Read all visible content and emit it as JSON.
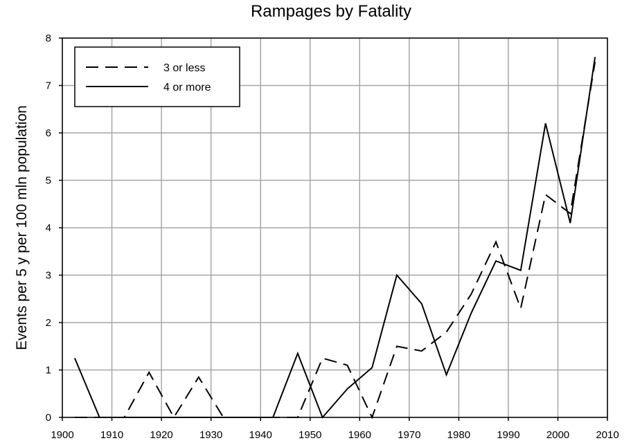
{
  "chart_data": {
    "type": "line",
    "title": "Rampages by Fatality",
    "xlabel": "",
    "ylabel": "Events per 5 y per 100 mln population",
    "xlim": [
      1900,
      2010
    ],
    "ylim": [
      0,
      8
    ],
    "xticks": [
      1900,
      1910,
      1920,
      1930,
      1940,
      1950,
      1960,
      1970,
      1980,
      1990,
      2000,
      2010
    ],
    "yticks": [
      0,
      1,
      2,
      3,
      4,
      5,
      6,
      7,
      8
    ],
    "grid": true,
    "legend_position": "top-left",
    "series": [
      {
        "name": "3 or less",
        "style": "dashed",
        "x": [
          1902.5,
          1907.5,
          1912.5,
          1917.5,
          1922.5,
          1927.5,
          1932.5,
          1937.5,
          1942.5,
          1947.5,
          1952.5,
          1957.5,
          1962.5,
          1967.5,
          1972.5,
          1977.5,
          1982.5,
          1987.5,
          1992.5,
          1997.5,
          2002.5,
          2007.5
        ],
        "values": [
          0,
          0,
          0,
          0.95,
          0,
          0.85,
          0,
          0,
          0,
          0,
          1.25,
          1.1,
          0,
          1.5,
          1.4,
          1.8,
          2.6,
          3.7,
          2.3,
          4.7,
          4.3,
          7.5
        ]
      },
      {
        "name": "4 or more",
        "style": "solid",
        "x": [
          1902.5,
          1907.5,
          1912.5,
          1917.5,
          1922.5,
          1927.5,
          1932.5,
          1937.5,
          1942.5,
          1947.5,
          1952.5,
          1957.5,
          1962.5,
          1967.5,
          1972.5,
          1977.5,
          1982.5,
          1987.5,
          1992.5,
          1997.5,
          2002.5,
          2007.5
        ],
        "values": [
          1.25,
          0,
          0,
          0,
          0,
          0,
          0,
          0,
          0,
          1.35,
          0,
          0.6,
          1.05,
          3.0,
          2.4,
          0.9,
          2.2,
          3.3,
          3.1,
          6.2,
          4.1,
          7.6
        ]
      }
    ]
  }
}
